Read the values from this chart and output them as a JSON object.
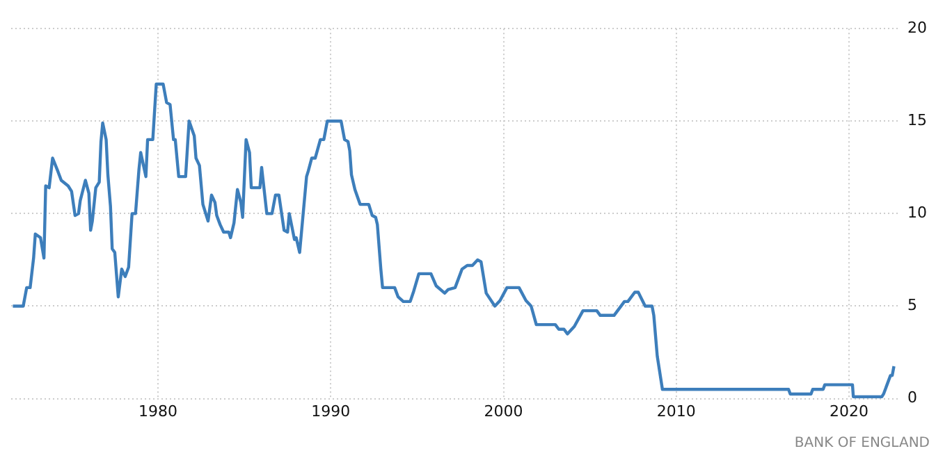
{
  "chart_data": {
    "type": "line",
    "x": [
      1971.6,
      1972.2,
      1972.4,
      1972.6,
      1972.8,
      1972.9,
      1973.2,
      1973.4,
      1973.5,
      1973.7,
      1973.9,
      1974.2,
      1974.4,
      1974.8,
      1975.0,
      1975.2,
      1975.4,
      1975.5,
      1975.8,
      1976.0,
      1976.1,
      1976.2,
      1976.4,
      1976.6,
      1976.7,
      1976.8,
      1977.0,
      1977.1,
      1977.25,
      1977.35,
      1977.5,
      1977.7,
      1977.9,
      1978.1,
      1978.3,
      1978.5,
      1978.7,
      1978.9,
      1979.0,
      1979.3,
      1979.4,
      1979.7,
      1979.9,
      1980.3,
      1980.5,
      1980.7,
      1980.9,
      1981.0,
      1981.2,
      1981.6,
      1981.8,
      1982.1,
      1982.2,
      1982.4,
      1982.6,
      1982.9,
      1983.1,
      1983.3,
      1983.4,
      1983.6,
      1983.8,
      1984.1,
      1984.2,
      1984.4,
      1984.6,
      1984.8,
      1984.9,
      1985.1,
      1985.3,
      1985.4,
      1985.9,
      1986.0,
      1986.3,
      1986.6,
      1986.8,
      1987.0,
      1987.3,
      1987.5,
      1987.6,
      1987.9,
      1988.0,
      1988.2,
      1988.6,
      1988.7,
      1988.9,
      1989.1,
      1989.4,
      1989.6,
      1989.8,
      1990.6,
      1990.8,
      1991.0,
      1991.1,
      1991.2,
      1991.4,
      1991.7,
      1992.2,
      1992.4,
      1992.6,
      1992.7,
      1992.9,
      1993.0,
      1993.7,
      1993.9,
      1994.2,
      1994.6,
      1994.8,
      1995.1,
      1995.8,
      1996.1,
      1996.6,
      1996.8,
      1997.2,
      1997.6,
      1997.9,
      1998.2,
      1998.5,
      1998.7,
      1999.0,
      1999.5,
      1999.8,
      2000.2,
      2000.9,
      2001.3,
      2001.6,
      2001.9,
      2003.0,
      2003.2,
      2003.5,
      2003.7,
      2004.1,
      2004.6,
      2005.4,
      2005.6,
      2006.4,
      2007.0,
      2007.2,
      2007.6,
      2007.8,
      2008.2,
      2008.6,
      2008.7,
      2008.9,
      2009.2,
      2016.5,
      2016.6,
      2017.8,
      2017.9,
      2018.5,
      2018.6,
      2020.2,
      2020.25,
      2021.9,
      2022.0,
      2022.2,
      2022.4,
      2022.5,
      2022.6
    ],
    "series": [
      {
        "color": "#3d7ebb",
        "values": [
          5.0,
          5.0,
          6.0,
          6.0,
          7.6,
          8.9,
          8.7,
          7.6,
          11.5,
          11.4,
          13.0,
          12.3,
          11.8,
          11.5,
          11.2,
          9.9,
          10.0,
          10.7,
          11.8,
          11.1,
          9.1,
          9.6,
          11.4,
          11.7,
          13.9,
          14.9,
          14.0,
          12.1,
          10.4,
          8.1,
          7.9,
          5.5,
          7.0,
          6.6,
          7.1,
          10.0,
          10.0,
          12.4,
          13.3,
          12.0,
          14.0,
          14.0,
          17.0,
          17.0,
          16.0,
          15.9,
          14.0,
          14.0,
          12.0,
          12.0,
          15.0,
          14.2,
          13.0,
          12.6,
          10.5,
          9.6,
          11.0,
          10.6,
          9.9,
          9.4,
          9.0,
          9.0,
          8.7,
          9.5,
          11.3,
          10.6,
          9.8,
          14.0,
          13.3,
          11.4,
          11.4,
          12.5,
          10.0,
          10.0,
          11.0,
          11.0,
          9.1,
          9.0,
          10.0,
          8.6,
          8.7,
          7.9,
          12.0,
          12.3,
          13.0,
          13.0,
          14.0,
          14.0,
          15.0,
          15.0,
          14.0,
          13.9,
          13.4,
          12.1,
          11.3,
          10.5,
          10.5,
          9.9,
          9.8,
          9.4,
          7.0,
          6.0,
          6.0,
          5.5,
          5.25,
          5.25,
          5.8,
          6.75,
          6.75,
          6.1,
          5.7,
          5.9,
          6.0,
          7.0,
          7.2,
          7.2,
          7.5,
          7.4,
          5.7,
          5.0,
          5.3,
          6.0,
          6.0,
          5.3,
          5.0,
          4.0,
          4.0,
          3.75,
          3.75,
          3.5,
          3.9,
          4.75,
          4.75,
          4.5,
          4.5,
          5.25,
          5.25,
          5.75,
          5.75,
          5.0,
          5.0,
          4.5,
          2.3,
          0.5,
          0.5,
          0.25,
          0.25,
          0.5,
          0.5,
          0.75,
          0.75,
          0.1,
          0.1,
          0.25,
          0.75,
          1.25,
          1.25,
          1.75
        ]
      }
    ],
    "xlim": [
      1971.5,
      2022.9
    ],
    "xticks": [
      1980,
      1990,
      2000,
      2010,
      2020
    ],
    "ylim": [
      0,
      20
    ],
    "yticks": [
      0,
      5,
      10,
      15,
      20
    ],
    "grid": true,
    "line_style": "solid",
    "marker": "none",
    "annotations": [
      "BANK OF ENGLAND"
    ]
  }
}
